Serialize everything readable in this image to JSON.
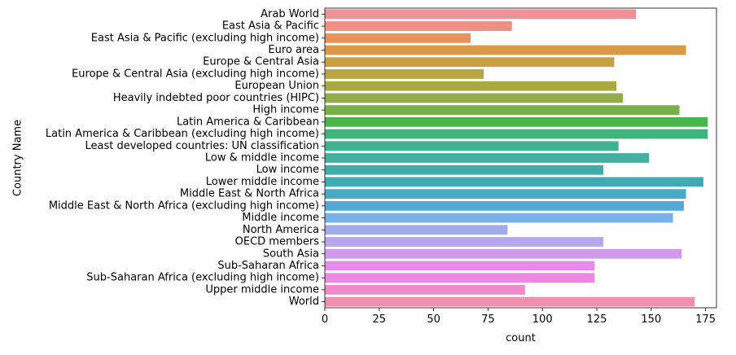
{
  "chart_data": {
    "type": "bar",
    "orientation": "horizontal",
    "xlabel": "count",
    "ylabel": "Country Name",
    "xlim": [
      0,
      180
    ],
    "xticks": [
      0,
      25,
      50,
      75,
      100,
      125,
      150,
      175
    ],
    "grid": false,
    "categories": [
      "Arab World",
      "East Asia & Pacific",
      "East Asia & Pacific (excluding high income)",
      "Euro area",
      "Europe & Central Asia",
      "Europe & Central Asia (excluding high income)",
      "European Union",
      "Heavily indebted poor countries (HIPC)",
      "High income",
      "Latin America & Caribbean",
      "Latin America & Caribbean (excluding high income)",
      "Least developed countries: UN classification",
      "Low & middle income",
      "Low income",
      "Lower middle income",
      "Middle East & North Africa",
      "Middle East & North Africa (excluding high income)",
      "Middle income",
      "North America",
      "OECD members",
      "South Asia",
      "Sub-Saharan Africa",
      "Sub-Saharan Africa (excluding high income)",
      "Upper middle income",
      "World"
    ],
    "values": [
      143,
      86,
      67,
      166,
      133,
      73,
      134,
      137,
      163,
      176,
      176,
      135,
      149,
      128,
      174,
      166,
      165,
      160,
      84,
      128,
      164,
      124,
      124,
      92,
      170
    ],
    "colors": [
      "#f0919a",
      "#ef8f83",
      "#e99158",
      "#d99845",
      "#c8a042",
      "#b7a53f",
      "#a8a93e",
      "#96ac48",
      "#78b047",
      "#49b44c",
      "#3db47c",
      "#3eb291",
      "#43af9f",
      "#41aca8",
      "#3fabb0",
      "#46aac2",
      "#52a9d7",
      "#79afe5",
      "#a0abe8",
      "#b6a6eb",
      "#cf9bea",
      "#e68bea",
      "#ee87e1",
      "#f18ac9",
      "#f08fb0"
    ]
  }
}
